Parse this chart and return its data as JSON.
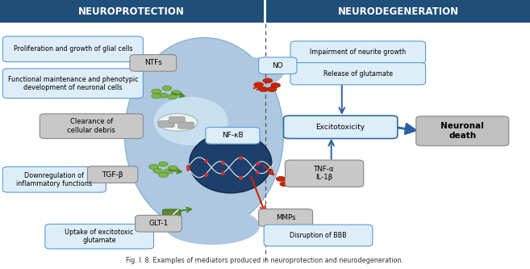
{
  "title_left": "NEUROPROTECTION",
  "title_right": "NEURODEGENERATION",
  "title_bg": "#1f4e79",
  "title_color": "white",
  "title_fontsize": 8.5,
  "bg_color": "white",
  "fig_width": 6.57,
  "fig_height": 3.33,
  "caption": "Fig. I. 8. Examples of mediators produced in neuroprotection and neurodegeneration."
}
